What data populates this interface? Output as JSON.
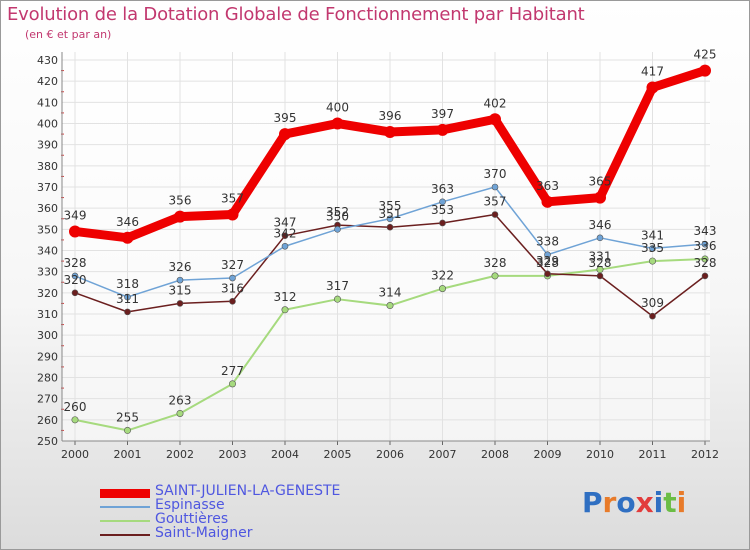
{
  "chart_data": {
    "type": "line",
    "title": "Evolution de la Dotation Globale de Fonctionnement par Habitant",
    "subtitle": "(en € et par an)",
    "xlabel": "",
    "ylabel": "",
    "ylim": [
      250,
      430
    ],
    "y_ticks": [
      "250",
      "260",
      "270",
      "280",
      "290",
      "300",
      "310",
      "320",
      "330",
      "340",
      "350",
      "360",
      "370",
      "380",
      "390",
      "400",
      "410",
      "420",
      "430"
    ],
    "categories": [
      "2000",
      "2001",
      "2002",
      "2003",
      "2004",
      "2005",
      "2006",
      "2007",
      "2008",
      "2009",
      "2010",
      "2011",
      "2012"
    ],
    "grid": true,
    "series": [
      {
        "name": "SAINT-JULIEN-LA-GENESTE",
        "color": "#ee0000",
        "values": [
          349,
          346,
          356,
          357,
          395,
          400,
          396,
          397,
          402,
          363,
          365,
          417,
          425
        ]
      },
      {
        "name": "Espinasse",
        "color": "#6fa3d6",
        "values": [
          328,
          318,
          326,
          327,
          342,
          350,
          355,
          363,
          370,
          338,
          346,
          341,
          343
        ]
      },
      {
        "name": "Gouttières",
        "color": "#a6da7e",
        "values": [
          260,
          255,
          263,
          277,
          312,
          317,
          314,
          322,
          328,
          328,
          331,
          335,
          336
        ]
      },
      {
        "name": "Saint-Maigner",
        "color": "#6b1f1f",
        "values": [
          320,
          311,
          315,
          316,
          347,
          352,
          351,
          353,
          357,
          329,
          328,
          309,
          328
        ]
      }
    ],
    "data_labels": [
      [
        "349",
        "346",
        "356",
        "357",
        "395",
        "400",
        "396",
        "397",
        "402",
        "363",
        "365",
        "417",
        "425"
      ],
      [
        "328",
        "318",
        "326",
        "327",
        "342",
        "350",
        "355",
        "363",
        "370",
        "338",
        "346",
        "341",
        "343"
      ],
      [
        "260",
        "255",
        "263",
        "277",
        "312",
        "317",
        "314",
        "322",
        "328",
        "328",
        "331",
        "335",
        "336"
      ],
      [
        "320",
        "311",
        "315",
        "316",
        "347",
        "352",
        "351",
        "353",
        "357",
        "329",
        "328",
        "309",
        "328"
      ]
    ],
    "legend_position": "bottom-left"
  },
  "logo_text": "Proxiti"
}
